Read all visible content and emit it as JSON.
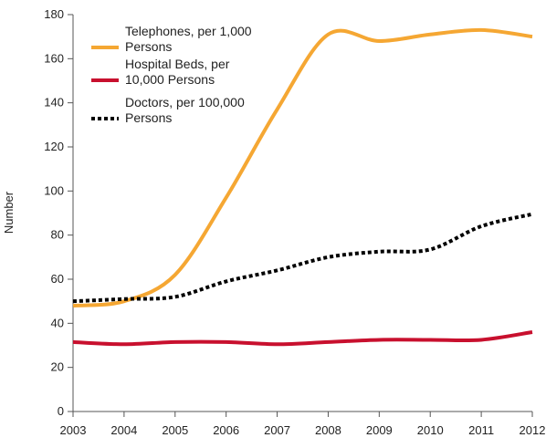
{
  "chart_data": {
    "type": "line",
    "y_label": "Number",
    "x": [
      2003,
      2004,
      2005,
      2006,
      2007,
      2008,
      2009,
      2010,
      2011,
      2012
    ],
    "xlim": [
      2003,
      2012
    ],
    "xticks": [
      2003,
      2004,
      2005,
      2006,
      2007,
      2008,
      2009,
      2010,
      2011,
      2012
    ],
    "ylim": [
      0,
      180
    ],
    "yticks": [
      0,
      20,
      40,
      60,
      80,
      100,
      120,
      140,
      160,
      180
    ],
    "legend": "upper left",
    "series": [
      {
        "name": "Telephones, per 1,000 Persons",
        "color": "#f5a733",
        "dash": false,
        "values": [
          48,
          50,
          62,
          97,
          137,
          171,
          168,
          171,
          173,
          170
        ]
      },
      {
        "name": "Hospital Beds, per 10,000 Persons",
        "color": "#c8102e",
        "dash": false,
        "values": [
          31.5,
          30.5,
          31.5,
          31.5,
          30.5,
          31.5,
          32.5,
          32.5,
          32.5,
          36
        ]
      },
      {
        "name": "Doctors, per 100,000 Persons",
        "color": "#000000",
        "dash": true,
        "values": [
          50,
          51,
          52,
          59,
          64,
          70,
          72.5,
          73.5,
          84,
          89.5
        ]
      }
    ]
  }
}
